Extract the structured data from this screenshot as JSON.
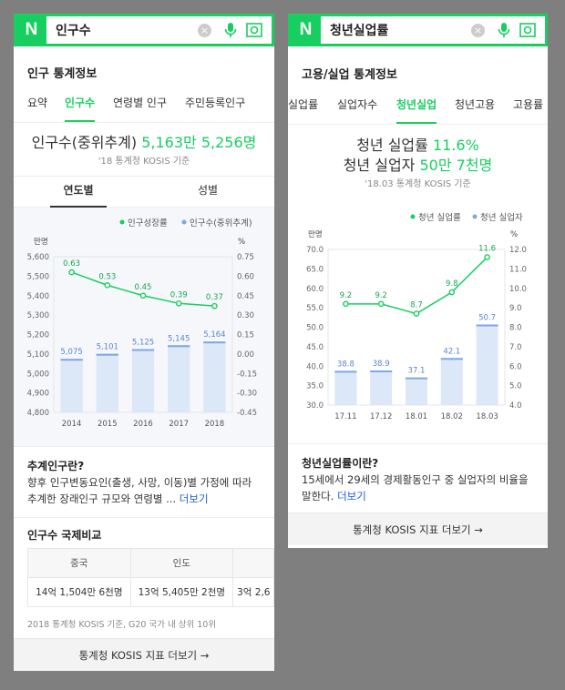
{
  "left": {
    "search": {
      "query": "인구수",
      "logo": "N"
    },
    "section_title": "인구 통계정보",
    "tabs": [
      "요약",
      "인구수",
      "연령별 인구",
      "주민등록인구"
    ],
    "headline_label": "인구수(중위추계)",
    "headline_value": "5,163만 5,256명",
    "source": "'18 통계청 KOSIS 기준",
    "segments": [
      "연도별",
      "성별"
    ],
    "legend_line": "인구성장률",
    "legend_bar": "인구수(중위추계)",
    "def_title": "추계인구란?",
    "def_text": "향후 인구변동요인(출생, 사망, 이동)별 가정에 따라 추계한 장래인구 규모와 연령별 ...",
    "more_label": "더보기",
    "compare_title": "인구수 국제비교",
    "compare_headers": [
      "중국",
      "인도",
      ""
    ],
    "compare_values": [
      "14억 1,504만 6천명",
      "13억 5,405만 2천명",
      "3억 2,6"
    ],
    "compare_note": "2018 통계청 KOSIS 기준, G20 국가 내 상위 10위",
    "footer": "통계청 KOSIS 지표 더보기 →"
  },
  "right": {
    "search": {
      "query": "청년실업률",
      "logo": "N"
    },
    "section_title": "고용/실업 통계정보",
    "tabs": [
      "실업률",
      "실업자수",
      "청년실업",
      "청년고용",
      "고용률"
    ],
    "headline1_label": "청년 실업률",
    "headline1_value": "11.6%",
    "headline2_label": "청년 실업자",
    "headline2_value": "50만 7천명",
    "source": "'18.03 통계청 KOSIS 기준",
    "legend_line": "청년 실업률",
    "legend_bar": "청년 실업자",
    "def_title": "청년실업률이란?",
    "def_text": "15세에서 29세의 경제활동인구 중 실업자의 비율을 말한다.",
    "more_label": "더보기",
    "footer": "통계청 KOSIS 지표 더보기 →"
  },
  "colors": {
    "accent": "#19ce60",
    "bar": "#dce7f8",
    "bar_top": "#7fa7e3",
    "link": "#1a5fcf"
  },
  "chart_data": [
    {
      "type": "bar",
      "categories": [
        "2014",
        "2015",
        "2016",
        "2017",
        "2018"
      ],
      "left_unit": "만명",
      "right_unit": "%",
      "left_ticks": [
        "5,600",
        "5,500",
        "5,400",
        "5,300",
        "5,200",
        "5,100",
        "5,000",
        "4,900",
        "4,800"
      ],
      "right_ticks": [
        "0.75",
        "0.60",
        "0.45",
        "0.30",
        "0.15",
        "0.00",
        "-0.15",
        "-0.30",
        "-0.45"
      ],
      "ylim": [
        4800,
        5600
      ],
      "y2lim": [
        -0.45,
        0.75
      ],
      "series": [
        {
          "name": "인구수(중위추계)",
          "type": "bar",
          "values": [
            5075,
            5101,
            5125,
            5145,
            5164
          ],
          "labels": [
            "5,075",
            "5,101",
            "5,125",
            "5,145",
            "5,164"
          ]
        },
        {
          "name": "인구성장률",
          "type": "line",
          "values": [
            0.63,
            0.53,
            0.45,
            0.39,
            0.37
          ],
          "labels": [
            "0.63",
            "0.53",
            "0.45",
            "0.39",
            "0.37"
          ]
        }
      ]
    },
    {
      "type": "bar",
      "categories": [
        "17.11",
        "17.12",
        "18.01",
        "18.02",
        "18.03"
      ],
      "left_unit": "만명",
      "right_unit": "%",
      "left_ticks": [
        "70.0",
        "65.0",
        "60.0",
        "55.0",
        "50.0",
        "45.0",
        "40.0",
        "35.0",
        "30.0"
      ],
      "right_ticks": [
        "12.0",
        "11.0",
        "10.0",
        "9.0",
        "8.0",
        "7.0",
        "6.0",
        "5.0",
        "4.0"
      ],
      "ylim": [
        30,
        70
      ],
      "y2lim": [
        4,
        12
      ],
      "series": [
        {
          "name": "청년 실업자",
          "type": "bar",
          "values": [
            38.8,
            38.9,
            37.1,
            42.1,
            50.7
          ],
          "labels": [
            "38.8",
            "38.9",
            "37.1",
            "42.1",
            "50.7"
          ]
        },
        {
          "name": "청년 실업률",
          "type": "line",
          "values": [
            9.2,
            9.2,
            8.7,
            9.8,
            11.6
          ],
          "labels": [
            "9.2",
            "9.2",
            "8.7",
            "9.8",
            "11.6"
          ]
        }
      ]
    }
  ]
}
